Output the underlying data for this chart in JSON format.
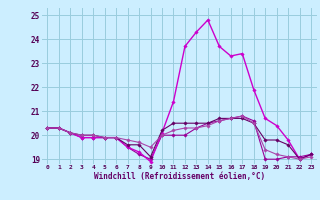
{
  "x": [
    0,
    1,
    2,
    3,
    4,
    5,
    6,
    7,
    8,
    9,
    10,
    11,
    12,
    13,
    14,
    15,
    16,
    17,
    18,
    19,
    20,
    21,
    22,
    23
  ],
  "series": [
    {
      "values": [
        20.3,
        20.3,
        20.1,
        19.9,
        19.9,
        19.9,
        19.9,
        19.5,
        19.2,
        19.0,
        20.0,
        20.0,
        20.0,
        20.3,
        20.5,
        20.6,
        20.7,
        20.8,
        20.6,
        19.0,
        19.0,
        19.1,
        19.1,
        19.2
      ],
      "color": "#990099",
      "lw": 0.8
    },
    {
      "values": [
        20.3,
        20.3,
        20.1,
        19.9,
        19.9,
        19.9,
        19.9,
        19.5,
        19.3,
        18.9,
        20.1,
        21.4,
        23.7,
        24.3,
        24.8,
        23.7,
        23.3,
        23.4,
        21.9,
        20.7,
        20.4,
        19.8,
        19.0,
        19.2
      ],
      "color": "#cc00cc",
      "lw": 1.0
    },
    {
      "values": [
        20.3,
        20.3,
        20.1,
        20.0,
        20.0,
        19.9,
        19.9,
        19.6,
        19.6,
        19.1,
        20.2,
        20.5,
        20.5,
        20.5,
        20.5,
        20.7,
        20.7,
        20.7,
        20.5,
        19.8,
        19.8,
        19.6,
        19.0,
        19.2
      ],
      "color": "#660066",
      "lw": 0.8
    },
    {
      "values": [
        20.3,
        20.3,
        20.1,
        20.0,
        20.0,
        19.9,
        19.9,
        19.8,
        19.7,
        19.5,
        20.0,
        20.2,
        20.3,
        20.3,
        20.4,
        20.6,
        20.7,
        20.8,
        20.5,
        19.4,
        19.2,
        19.1,
        19.0,
        19.1
      ],
      "color": "#aa44aa",
      "lw": 0.8
    }
  ],
  "xlim": [
    -0.5,
    23.5
  ],
  "ylim": [
    18.8,
    25.3
  ],
  "yticks": [
    19,
    20,
    21,
    22,
    23,
    24,
    25
  ],
  "xticks": [
    0,
    1,
    2,
    3,
    4,
    5,
    6,
    7,
    8,
    9,
    10,
    11,
    12,
    13,
    14,
    15,
    16,
    17,
    18,
    19,
    20,
    21,
    22,
    23
  ],
  "xlabel": "Windchill (Refroidissement éolien,°C)",
  "bg_color": "#cceeff",
  "grid_color": "#99ccdd",
  "marker": "D",
  "marker_size": 1.8
}
